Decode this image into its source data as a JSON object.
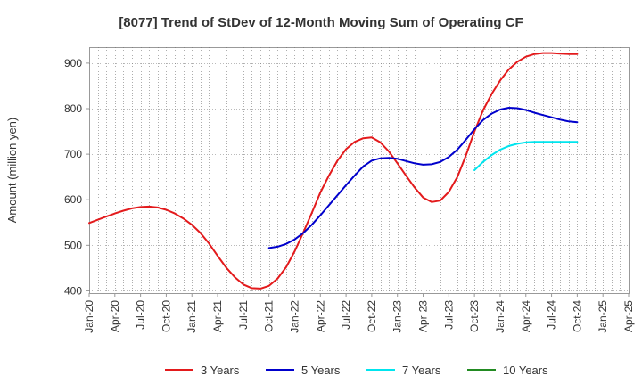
{
  "chart_data": {
    "type": "line",
    "title": "[8077]  Trend of StDev of 12-Month Moving Sum of Operating CF",
    "xlabel": "",
    "ylabel": "Amount (million yen)",
    "ylim": [
      395,
      935
    ],
    "yticks": [
      400,
      500,
      600,
      700,
      800,
      900
    ],
    "x_tick_labels": [
      "Jan-20",
      "Apr-20",
      "Jul-20",
      "Oct-20",
      "Jan-21",
      "Apr-21",
      "Jul-21",
      "Oct-21",
      "Jan-22",
      "Apr-22",
      "Jul-22",
      "Oct-22",
      "Jan-23",
      "Apr-23",
      "Jul-23",
      "Oct-23",
      "Jan-24",
      "Apr-24",
      "Jul-24",
      "Oct-24",
      "Jan-25",
      "Apr-25"
    ],
    "x_note": "x values are month index from Jan-20 (0) to Apr-25 (63)",
    "xlim": [
      0,
      63
    ],
    "grid": true,
    "legend_position": "bottom",
    "series": [
      {
        "name": "3 Years",
        "color": "#e31a1c",
        "x": [
          0,
          1,
          2,
          3,
          4,
          5,
          6,
          7,
          8,
          9,
          10,
          11,
          12,
          13,
          14,
          15,
          16,
          17,
          18,
          19,
          20,
          21,
          22,
          23,
          24,
          25,
          26,
          27,
          28,
          29,
          30,
          31,
          32,
          33,
          34,
          35,
          36,
          37,
          38,
          39,
          40,
          41,
          42,
          43,
          44,
          45,
          46,
          47,
          48,
          49,
          50,
          51,
          52,
          53,
          54,
          55,
          56,
          57
        ],
        "values": [
          549,
          556,
          563,
          570,
          576,
          581,
          584,
          585,
          583,
          578,
          570,
          559,
          545,
          527,
          504,
          477,
          451,
          430,
          414,
          406,
          405,
          411,
          427,
          452,
          487,
          528,
          571,
          616,
          653,
          686,
          711,
          727,
          735,
          737,
          726,
          706,
          680,
          653,
          627,
          605,
          595,
          598,
          617,
          650,
          697,
          750,
          796,
          832,
          862,
          886,
          903,
          914,
          920,
          922,
          922,
          921,
          920,
          920
        ]
      },
      {
        "name": "5 Years",
        "color": "#0000cc",
        "x": [
          21,
          22,
          23,
          24,
          25,
          26,
          27,
          28,
          29,
          30,
          31,
          32,
          33,
          34,
          35,
          36,
          37,
          38,
          39,
          40,
          41,
          42,
          43,
          44,
          45,
          46,
          47,
          48,
          49,
          50,
          51,
          52,
          53,
          54,
          55,
          56,
          57
        ],
        "values": [
          494,
          497,
          503,
          513,
          527,
          545,
          566,
          588,
          610,
          632,
          653,
          673,
          686,
          691,
          692,
          690,
          685,
          680,
          677,
          678,
          683,
          694,
          710,
          732,
          755,
          775,
          789,
          798,
          802,
          801,
          797,
          791,
          786,
          781,
          776,
          772,
          770
        ]
      },
      {
        "name": "7 Years",
        "color": "#00e5ee",
        "x": [
          45,
          46,
          47,
          48,
          49,
          50,
          51,
          52,
          53,
          54,
          55,
          56,
          57
        ],
        "values": [
          665,
          683,
          698,
          710,
          718,
          723,
          726,
          727,
          727,
          727,
          727,
          727,
          727
        ]
      },
      {
        "name": "10 Years",
        "color": "#228b22",
        "x": [],
        "values": []
      }
    ]
  }
}
